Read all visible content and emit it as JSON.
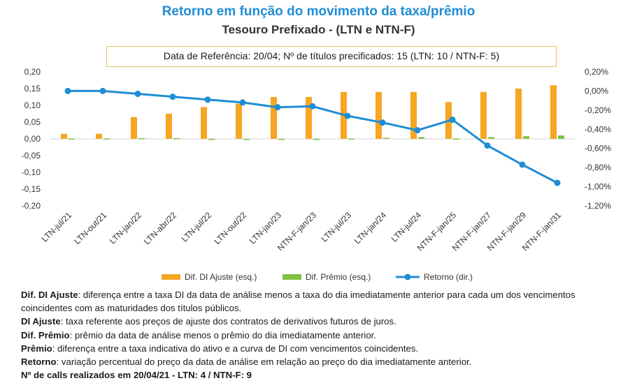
{
  "title": "Retorno em função do movimento da taxa/prêmio",
  "subtitle": "Tesouro Prefixado - (LTN e NTN-F)",
  "reference_box": "Data de Referência: 20/04; Nº de títulos precificados: 15 (LTN: 10 / NTN-F: 5)",
  "colors": {
    "title": "#1f8dd6",
    "dif_di": "#f5a623",
    "dif_premio": "#7dc242",
    "retorno": "#1f8dd6"
  },
  "chart_data": {
    "type": "bar",
    "categories": [
      "LTN-jul/21",
      "LTN-out/21",
      "LTN-jan/22",
      "LTN-abr/22",
      "LTN-jul/22",
      "LTN-out/22",
      "LTN-jan/23",
      "NTN-F-jan/23",
      "LTN-jul/23",
      "LTN-jan/24",
      "LTN-jul/24",
      "NTN-F-jan/25",
      "NTN-F-jan/27",
      "NTN-F-jan/29",
      "NTN-F-jan/31"
    ],
    "series": [
      {
        "name": "Dif. DI Ajuste (esq.)",
        "kind": "bar",
        "axis": "left",
        "values": [
          0.015,
          0.015,
          0.065,
          0.075,
          0.095,
          0.105,
          0.125,
          0.125,
          0.14,
          0.14,
          0.14,
          0.11,
          0.14,
          0.15,
          0.16
        ]
      },
      {
        "name": "Dif. Prêmio (esq.)",
        "kind": "bar",
        "axis": "left",
        "values": [
          0.001,
          0.001,
          0.002,
          0.002,
          0.0,
          -0.002,
          0.0,
          0.0,
          0.001,
          0.003,
          0.005,
          0.001,
          0.005,
          0.008,
          0.01
        ]
      },
      {
        "name": "Retorno (dir.)",
        "kind": "line",
        "axis": "right",
        "values": [
          0.0,
          0.0,
          -0.03,
          -0.06,
          -0.09,
          -0.12,
          -0.17,
          -0.16,
          -0.26,
          -0.33,
          -0.41,
          -0.3,
          -0.57,
          -0.77,
          -0.96
        ]
      }
    ],
    "ylim_left": [
      -0.2,
      0.2
    ],
    "yticks_left": [
      "0,20",
      "0,15",
      "0,10",
      "0,05",
      "0,00",
      "-0,05",
      "-0,10",
      "-0,15",
      "-0,20"
    ],
    "ylim_right": [
      -1.2,
      0.2
    ],
    "yticks_right": [
      "0,20%",
      "0,00%",
      "-0,20%",
      "-0,40%",
      "-0,60%",
      "-0,80%",
      "-1,00%",
      "-1,20%"
    ],
    "legend_position": "bottom",
    "grid": false
  },
  "notes": [
    {
      "term": "Dif. DI Ajuste",
      "text": ": diferença entre a taxa DI da data de análise menos a taxa do dia imediatamente anterior para cada um dos vencimentos coincidentes com as maturidades dos títulos públicos."
    },
    {
      "term": "DI Ajuste",
      "text": ": taxa referente aos preços de ajuste dos contratos de derivativos futuros de juros."
    },
    {
      "term": "Dif. Prêmio",
      "text": ": prêmio da data de análise menos o prêmio do dia imediatamente anterior."
    },
    {
      "term": "Prêmio",
      "text": ": diferença entre a taxa indicativa do ativo e a curva de DI com vencimentos coincidentes."
    },
    {
      "term": "Retorno",
      "text": ": variação percentual do preço da data de análise em relação ao preço do dia imediatamente anterior."
    }
  ],
  "calls_line": "Nº de calls realizados em 20/04/21  -  LTN: 4 / NTN-F: 9"
}
